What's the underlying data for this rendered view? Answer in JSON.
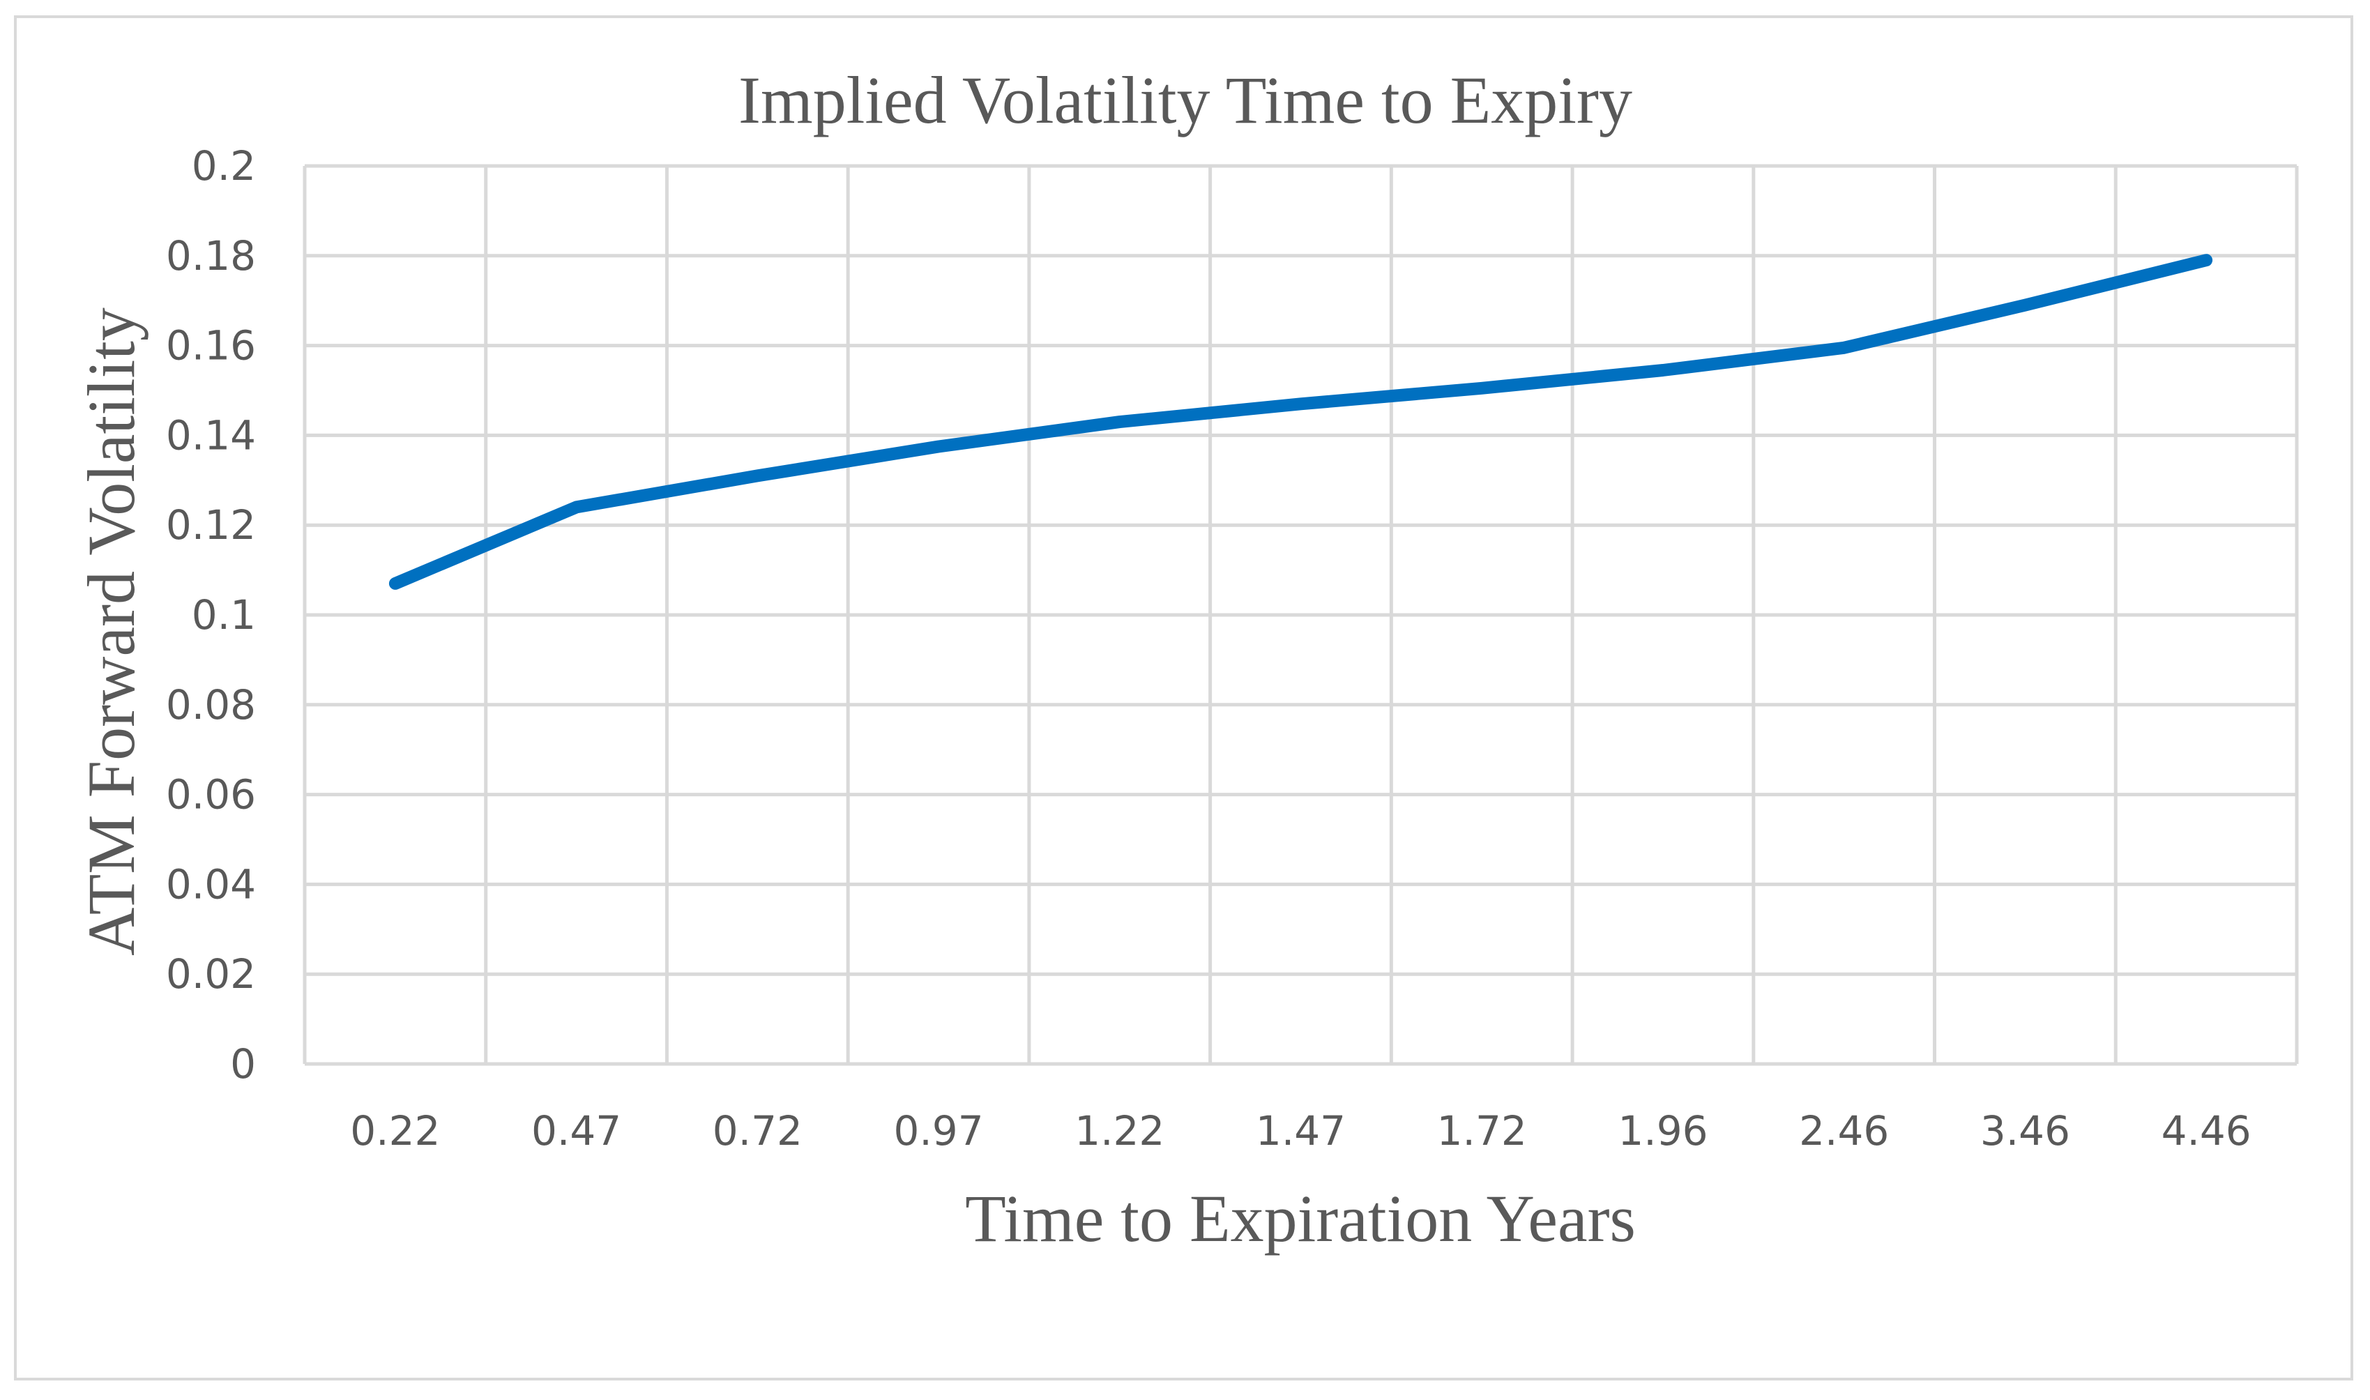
{
  "chart_data": {
    "type": "line",
    "title": "Implied Volatility Time  to Expiry",
    "xlabel": "Time to Expiration Years",
    "ylabel": "ATM  Forward  Volatility",
    "categories": [
      "0.22",
      "0.47",
      "0.72",
      "0.97",
      "1.22",
      "1.47",
      "1.72",
      "1.96",
      "2.46",
      "3.46",
      "4.46"
    ],
    "series": [
      {
        "values": [
          0.107,
          0.124,
          0.131,
          0.1375,
          0.143,
          0.147,
          0.1505,
          0.1545,
          0.1595,
          0.169,
          0.179
        ],
        "color": "#0070c0"
      }
    ],
    "ylim": [
      0,
      0.2
    ],
    "yticks": [
      "0",
      "0.02",
      "0.04",
      "0.06",
      "0.08",
      "0.1",
      "0.12",
      "0.14",
      "0.16",
      "0.18",
      "0.2"
    ],
    "grid": true,
    "legend": "none"
  }
}
